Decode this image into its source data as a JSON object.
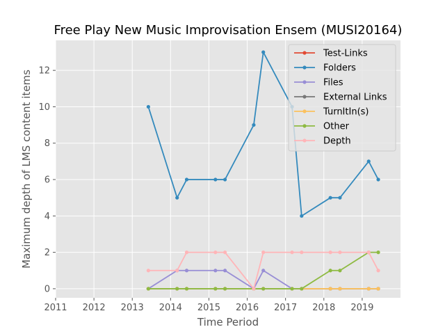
{
  "chart_data": {
    "type": "line",
    "title": "Free Play New Music Improvisation Ensem (MUSI20164)",
    "xlabel": "Time Period",
    "ylabel": "Maximum depth of LMS content items",
    "xlim": [
      2011,
      2020
    ],
    "ylim": [
      -0.5,
      13.65
    ],
    "x_ticks": [
      2011,
      2012,
      2013,
      2014,
      2015,
      2016,
      2017,
      2018,
      2019
    ],
    "y_ticks": [
      0,
      2,
      4,
      6,
      8,
      10,
      12
    ],
    "grid": true,
    "legend_position": "top-right",
    "x": [
      2013.42,
      2014.17,
      2014.42,
      2015.17,
      2015.42,
      2016.17,
      2016.42,
      2017.17,
      2017.42,
      2018.17,
      2018.42,
      2019.17,
      2019.42
    ],
    "series": [
      {
        "name": "Test-Links",
        "color": "#E24A33",
        "values": [
          0,
          0,
          0,
          0,
          0,
          0,
          0,
          0,
          0,
          0,
          0,
          0,
          0
        ]
      },
      {
        "name": "Folders",
        "color": "#348ABD",
        "values": [
          10,
          5,
          6,
          6,
          6,
          9,
          13,
          10,
          4,
          5,
          5,
          7,
          6
        ]
      },
      {
        "name": "Files",
        "color": "#988ED5",
        "values": [
          0,
          1,
          1,
          1,
          1,
          0,
          1,
          0,
          0,
          0,
          0,
          0,
          0
        ]
      },
      {
        "name": "External Links",
        "color": "#777777",
        "values": [
          0,
          0,
          0,
          0,
          0,
          0,
          0,
          0,
          0,
          0,
          0,
          0,
          0
        ]
      },
      {
        "name": "TurnItIn(s)",
        "color": "#FBC15E",
        "values": [
          0,
          0,
          0,
          0,
          0,
          0,
          0,
          0,
          0,
          0,
          0,
          0,
          0
        ]
      },
      {
        "name": "Other",
        "color": "#8EBA42",
        "values": [
          0,
          0,
          0,
          0,
          0,
          0,
          0,
          0,
          0,
          1,
          1,
          2,
          2
        ]
      },
      {
        "name": "Depth",
        "color": "#FFB5B8",
        "values": [
          1,
          1,
          2,
          2,
          2,
          0,
          2,
          2,
          2,
          2,
          2,
          2,
          1
        ]
      }
    ]
  }
}
